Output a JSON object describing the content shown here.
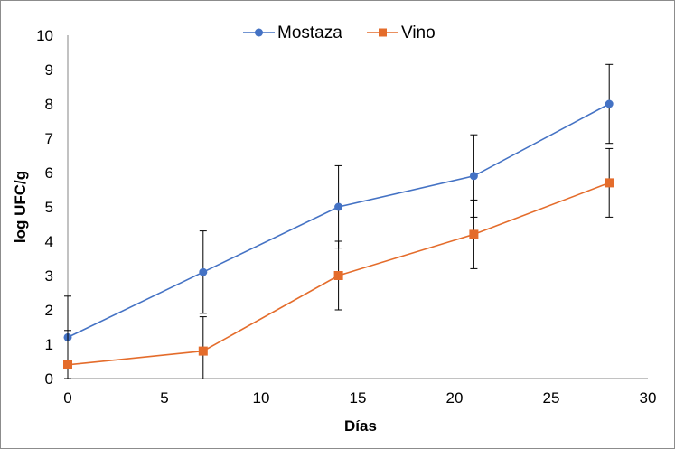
{
  "chart_data": {
    "type": "line",
    "xlabel": "Días",
    "ylabel": "log UFC/g",
    "xlim": [
      0,
      30
    ],
    "ylim": [
      0,
      10
    ],
    "xticks": [
      0,
      5,
      10,
      15,
      20,
      25,
      30
    ],
    "yticks": [
      0,
      1,
      2,
      3,
      4,
      5,
      6,
      7,
      8,
      9,
      10
    ],
    "grid": false,
    "legend_position": "top-center",
    "series": [
      {
        "name": "Mostaza",
        "color": "#4472c4",
        "marker": "circle",
        "x": [
          0,
          7,
          14,
          21,
          28
        ],
        "y": [
          1.2,
          3.1,
          5.0,
          5.9,
          8.0
        ],
        "error": [
          1.2,
          1.2,
          1.2,
          1.2,
          1.15
        ]
      },
      {
        "name": "Vino",
        "color": "#e46c2b",
        "marker": "square",
        "x": [
          0,
          7,
          14,
          21,
          28
        ],
        "y": [
          0.4,
          0.8,
          3.0,
          4.2,
          5.7
        ],
        "error": [
          1.0,
          1.0,
          1.0,
          1.0,
          1.0
        ]
      }
    ]
  }
}
